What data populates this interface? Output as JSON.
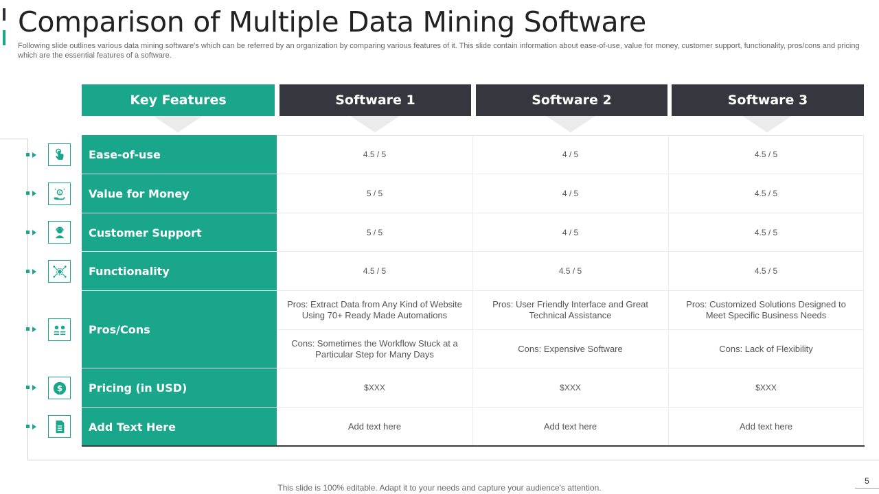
{
  "title": "Comparison of Multiple Data Mining Software",
  "subtitle": "Following slide outlines various data mining software's which can be referred by an organization by comparing various features of it. This slide contain information about ease-of-use, value for money, customer support, functionality, pros/cons and pricing which are the essential features of a software.",
  "headers": [
    "Key Features",
    "Software 1",
    "Software 2",
    "Software 3"
  ],
  "rows": [
    {
      "feature": "Ease-of-use",
      "icon": "touch-icon",
      "values": [
        "4.5 / 5",
        "4 / 5",
        "4.5 / 5"
      ]
    },
    {
      "feature": "Value for Money",
      "icon": "money-hand-icon",
      "values": [
        "5 / 5",
        "4 / 5",
        "4.5 / 5"
      ]
    },
    {
      "feature": "Customer Support",
      "icon": "support-agent-icon",
      "values": [
        "5 / 5",
        "4 / 5",
        "4.5 / 5"
      ]
    },
    {
      "feature": "Functionality",
      "icon": "network-gear-icon",
      "values": [
        "4.5 / 5",
        "4.5 / 5",
        "4.5 / 5"
      ]
    },
    {
      "feature": "Pros/Cons",
      "icon": "users-list-icon",
      "pros": [
        "Pros: Extract Data from Any Kind of Website Using 70+ Ready Made Automations",
        "Pros: User Friendly Interface  and Great Technical Assistance",
        "Pros: Customized Solutions Designed to Meet Specific Business Needs"
      ],
      "cons": [
        "Cons: Sometimes the Workflow Stuck at a Particular Step for Many Days",
        "Cons: Expensive  Software",
        "Cons: Lack of Flexibility"
      ]
    },
    {
      "feature": "Pricing (in USD)",
      "icon": "dollar-coin-icon",
      "values": [
        "$XXX",
        "$XXX",
        "$XXX"
      ]
    },
    {
      "feature": "Add Text Here",
      "icon": "document-icon",
      "values": [
        "Add text here",
        "Add text here",
        "Add text here"
      ]
    }
  ],
  "footer": "This slide is 100% editable. Adapt it to your needs and capture your audience's attention.",
  "page_number": "5",
  "colors": {
    "accent": "#1aa68b",
    "dark": "#36363f"
  }
}
